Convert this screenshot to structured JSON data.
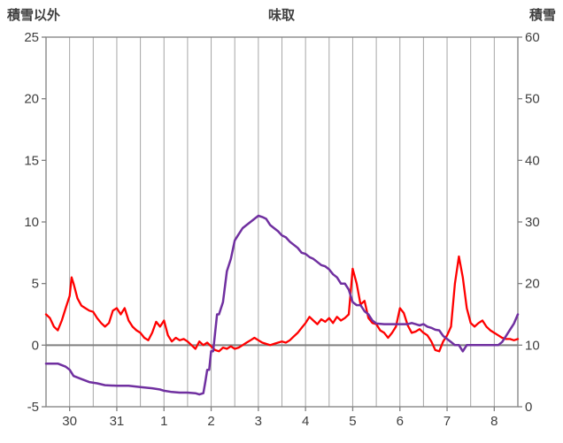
{
  "header": {
    "left_axis_title": "積雪以外",
    "chart_title": "味取",
    "right_axis_title": "積雪"
  },
  "colors": {
    "red_series": "#FF0000",
    "purple_series": "#7030A0",
    "gridline": "#A6A6A6",
    "border": "#808080",
    "zero_line": "#808080",
    "text": "#404040",
    "background": "#FFFFFF"
  },
  "chart_data": {
    "type": "line",
    "title": "味取",
    "legend": "none",
    "grid": "vertical-only",
    "left_axis": {
      "label": "積雪以外",
      "min": -5,
      "max": 25,
      "ticks": [
        25,
        20,
        15,
        10,
        5,
        0,
        -5
      ]
    },
    "right_axis": {
      "label": "積雪",
      "min": 0,
      "max": 60,
      "ticks": [
        60,
        50,
        40,
        30,
        20,
        10,
        0
      ]
    },
    "x_axis": {
      "unit": "hours",
      "min": 0,
      "max": 240,
      "grid_step": 12,
      "tick_hours": [
        12,
        36,
        60,
        84,
        108,
        132,
        156,
        180,
        204,
        228
      ],
      "tick_labels": [
        "30",
        "31",
        "1",
        "2",
        "3",
        "4",
        "5",
        "6",
        "7",
        "8"
      ]
    },
    "zero_line_value": 0,
    "series": [
      {
        "name": "積雪以外",
        "axis": "left",
        "color": "#FF0000",
        "width": 2.3,
        "points": [
          [
            0,
            2.5
          ],
          [
            2,
            2.2
          ],
          [
            4,
            1.5
          ],
          [
            6,
            1.2
          ],
          [
            8,
            2.0
          ],
          [
            10,
            3.0
          ],
          [
            12,
            4.0
          ],
          [
            13,
            5.5
          ],
          [
            14,
            5.0
          ],
          [
            16,
            3.8
          ],
          [
            18,
            3.2
          ],
          [
            20,
            3.0
          ],
          [
            22,
            2.8
          ],
          [
            24,
            2.7
          ],
          [
            26,
            2.2
          ],
          [
            28,
            1.8
          ],
          [
            30,
            1.5
          ],
          [
            32,
            1.8
          ],
          [
            34,
            2.8
          ],
          [
            36,
            3.0
          ],
          [
            38,
            2.5
          ],
          [
            40,
            3.0
          ],
          [
            42,
            2.0
          ],
          [
            44,
            1.5
          ],
          [
            46,
            1.2
          ],
          [
            48,
            1.0
          ],
          [
            50,
            0.6
          ],
          [
            52,
            0.4
          ],
          [
            54,
            1.0
          ],
          [
            56,
            1.9
          ],
          [
            58,
            1.5
          ],
          [
            60,
            2.0
          ],
          [
            62,
            0.8
          ],
          [
            64,
            0.3
          ],
          [
            66,
            0.6
          ],
          [
            68,
            0.4
          ],
          [
            70,
            0.5
          ],
          [
            72,
            0.3
          ],
          [
            74,
            0.0
          ],
          [
            76,
            -0.3
          ],
          [
            78,
            0.3
          ],
          [
            80,
            0.0
          ],
          [
            82,
            0.2
          ],
          [
            84,
            -0.1
          ],
          [
            86,
            -0.4
          ],
          [
            88,
            -0.5
          ],
          [
            90,
            -0.2
          ],
          [
            92,
            -0.3
          ],
          [
            94,
            -0.1
          ],
          [
            96,
            -0.3
          ],
          [
            98,
            -0.2
          ],
          [
            100,
            0.0
          ],
          [
            102,
            0.2
          ],
          [
            104,
            0.4
          ],
          [
            106,
            0.6
          ],
          [
            108,
            0.4
          ],
          [
            110,
            0.2
          ],
          [
            112,
            0.1
          ],
          [
            114,
            0.0
          ],
          [
            116,
            0.1
          ],
          [
            118,
            0.2
          ],
          [
            120,
            0.3
          ],
          [
            122,
            0.2
          ],
          [
            124,
            0.4
          ],
          [
            126,
            0.7
          ],
          [
            128,
            1.0
          ],
          [
            130,
            1.4
          ],
          [
            132,
            1.8
          ],
          [
            134,
            2.3
          ],
          [
            136,
            2.0
          ],
          [
            138,
            1.7
          ],
          [
            140,
            2.1
          ],
          [
            142,
            1.9
          ],
          [
            144,
            2.2
          ],
          [
            146,
            1.8
          ],
          [
            148,
            2.3
          ],
          [
            150,
            2.0
          ],
          [
            152,
            2.2
          ],
          [
            154,
            2.5
          ],
          [
            156,
            6.2
          ],
          [
            158,
            5.0
          ],
          [
            160,
            3.3
          ],
          [
            162,
            3.6
          ],
          [
            164,
            2.2
          ],
          [
            166,
            1.8
          ],
          [
            168,
            1.7
          ],
          [
            170,
            1.2
          ],
          [
            172,
            1.0
          ],
          [
            174,
            0.6
          ],
          [
            176,
            1.0
          ],
          [
            178,
            1.5
          ],
          [
            180,
            3.0
          ],
          [
            182,
            2.6
          ],
          [
            184,
            1.6
          ],
          [
            186,
            1.0
          ],
          [
            188,
            1.1
          ],
          [
            190,
            1.3
          ],
          [
            192,
            1.0
          ],
          [
            194,
            0.8
          ],
          [
            196,
            0.3
          ],
          [
            198,
            -0.4
          ],
          [
            200,
            -0.5
          ],
          [
            202,
            0.3
          ],
          [
            204,
            0.8
          ],
          [
            206,
            1.5
          ],
          [
            208,
            5.0
          ],
          [
            210,
            7.2
          ],
          [
            212,
            5.5
          ],
          [
            214,
            3.0
          ],
          [
            216,
            1.8
          ],
          [
            218,
            1.5
          ],
          [
            220,
            1.8
          ],
          [
            222,
            2.0
          ],
          [
            224,
            1.5
          ],
          [
            226,
            1.2
          ],
          [
            228,
            1.0
          ],
          [
            230,
            0.8
          ],
          [
            232,
            0.6
          ],
          [
            234,
            0.5
          ],
          [
            236,
            0.5
          ],
          [
            238,
            0.4
          ],
          [
            240,
            0.5
          ]
        ]
      },
      {
        "name": "積雪",
        "axis": "right",
        "color": "#7030A0",
        "width": 2.5,
        "points": [
          [
            0,
            7
          ],
          [
            6,
            7
          ],
          [
            10,
            6.5
          ],
          [
            12,
            6
          ],
          [
            14,
            5
          ],
          [
            18,
            4.5
          ],
          [
            22,
            4
          ],
          [
            26,
            3.8
          ],
          [
            30,
            3.5
          ],
          [
            36,
            3.4
          ],
          [
            42,
            3.4
          ],
          [
            48,
            3.2
          ],
          [
            54,
            3.0
          ],
          [
            58,
            2.8
          ],
          [
            60,
            2.6
          ],
          [
            64,
            2.4
          ],
          [
            68,
            2.3
          ],
          [
            72,
            2.3
          ],
          [
            76,
            2.2
          ],
          [
            78,
            2.0
          ],
          [
            80,
            2.2
          ],
          [
            81,
            4
          ],
          [
            82,
            6
          ],
          [
            83,
            6
          ],
          [
            84,
            9
          ],
          [
            85,
            9
          ],
          [
            86,
            12
          ],
          [
            87,
            15
          ],
          [
            88,
            15
          ],
          [
            90,
            17
          ],
          [
            92,
            22
          ],
          [
            94,
            24
          ],
          [
            96,
            27
          ],
          [
            98,
            28
          ],
          [
            100,
            29
          ],
          [
            102,
            29.5
          ],
          [
            104,
            30
          ],
          [
            106,
            30.5
          ],
          [
            108,
            31
          ],
          [
            110,
            30.8
          ],
          [
            112,
            30.5
          ],
          [
            114,
            29.5
          ],
          [
            116,
            29
          ],
          [
            118,
            28.5
          ],
          [
            120,
            27.8
          ],
          [
            122,
            27.5
          ],
          [
            124,
            26.8
          ],
          [
            126,
            26.3
          ],
          [
            128,
            25.8
          ],
          [
            130,
            25
          ],
          [
            132,
            24.8
          ],
          [
            134,
            24.3
          ],
          [
            136,
            24
          ],
          [
            138,
            23.5
          ],
          [
            140,
            23
          ],
          [
            142,
            22.8
          ],
          [
            144,
            22.3
          ],
          [
            146,
            21.5
          ],
          [
            148,
            21
          ],
          [
            150,
            20
          ],
          [
            152,
            20
          ],
          [
            154,
            19
          ],
          [
            156,
            17
          ],
          [
            158,
            16.5
          ],
          [
            160,
            16.5
          ],
          [
            162,
            15.5
          ],
          [
            164,
            15
          ],
          [
            166,
            14
          ],
          [
            168,
            13.5
          ],
          [
            172,
            13.4
          ],
          [
            176,
            13.4
          ],
          [
            180,
            13.4
          ],
          [
            184,
            13.4
          ],
          [
            186,
            13.6
          ],
          [
            188,
            13.4
          ],
          [
            190,
            13.2
          ],
          [
            192,
            13.4
          ],
          [
            194,
            13
          ],
          [
            196,
            12.8
          ],
          [
            198,
            12.5
          ],
          [
            200,
            12.4
          ],
          [
            202,
            11.5
          ],
          [
            204,
            11
          ],
          [
            206,
            10.5
          ],
          [
            208,
            10
          ],
          [
            210,
            10
          ],
          [
            212,
            9
          ],
          [
            214,
            10
          ],
          [
            218,
            10
          ],
          [
            222,
            10
          ],
          [
            226,
            10
          ],
          [
            230,
            10
          ],
          [
            232,
            10.5
          ],
          [
            234,
            11.5
          ],
          [
            236,
            12.5
          ],
          [
            238,
            13.5
          ],
          [
            240,
            15
          ]
        ]
      }
    ]
  }
}
